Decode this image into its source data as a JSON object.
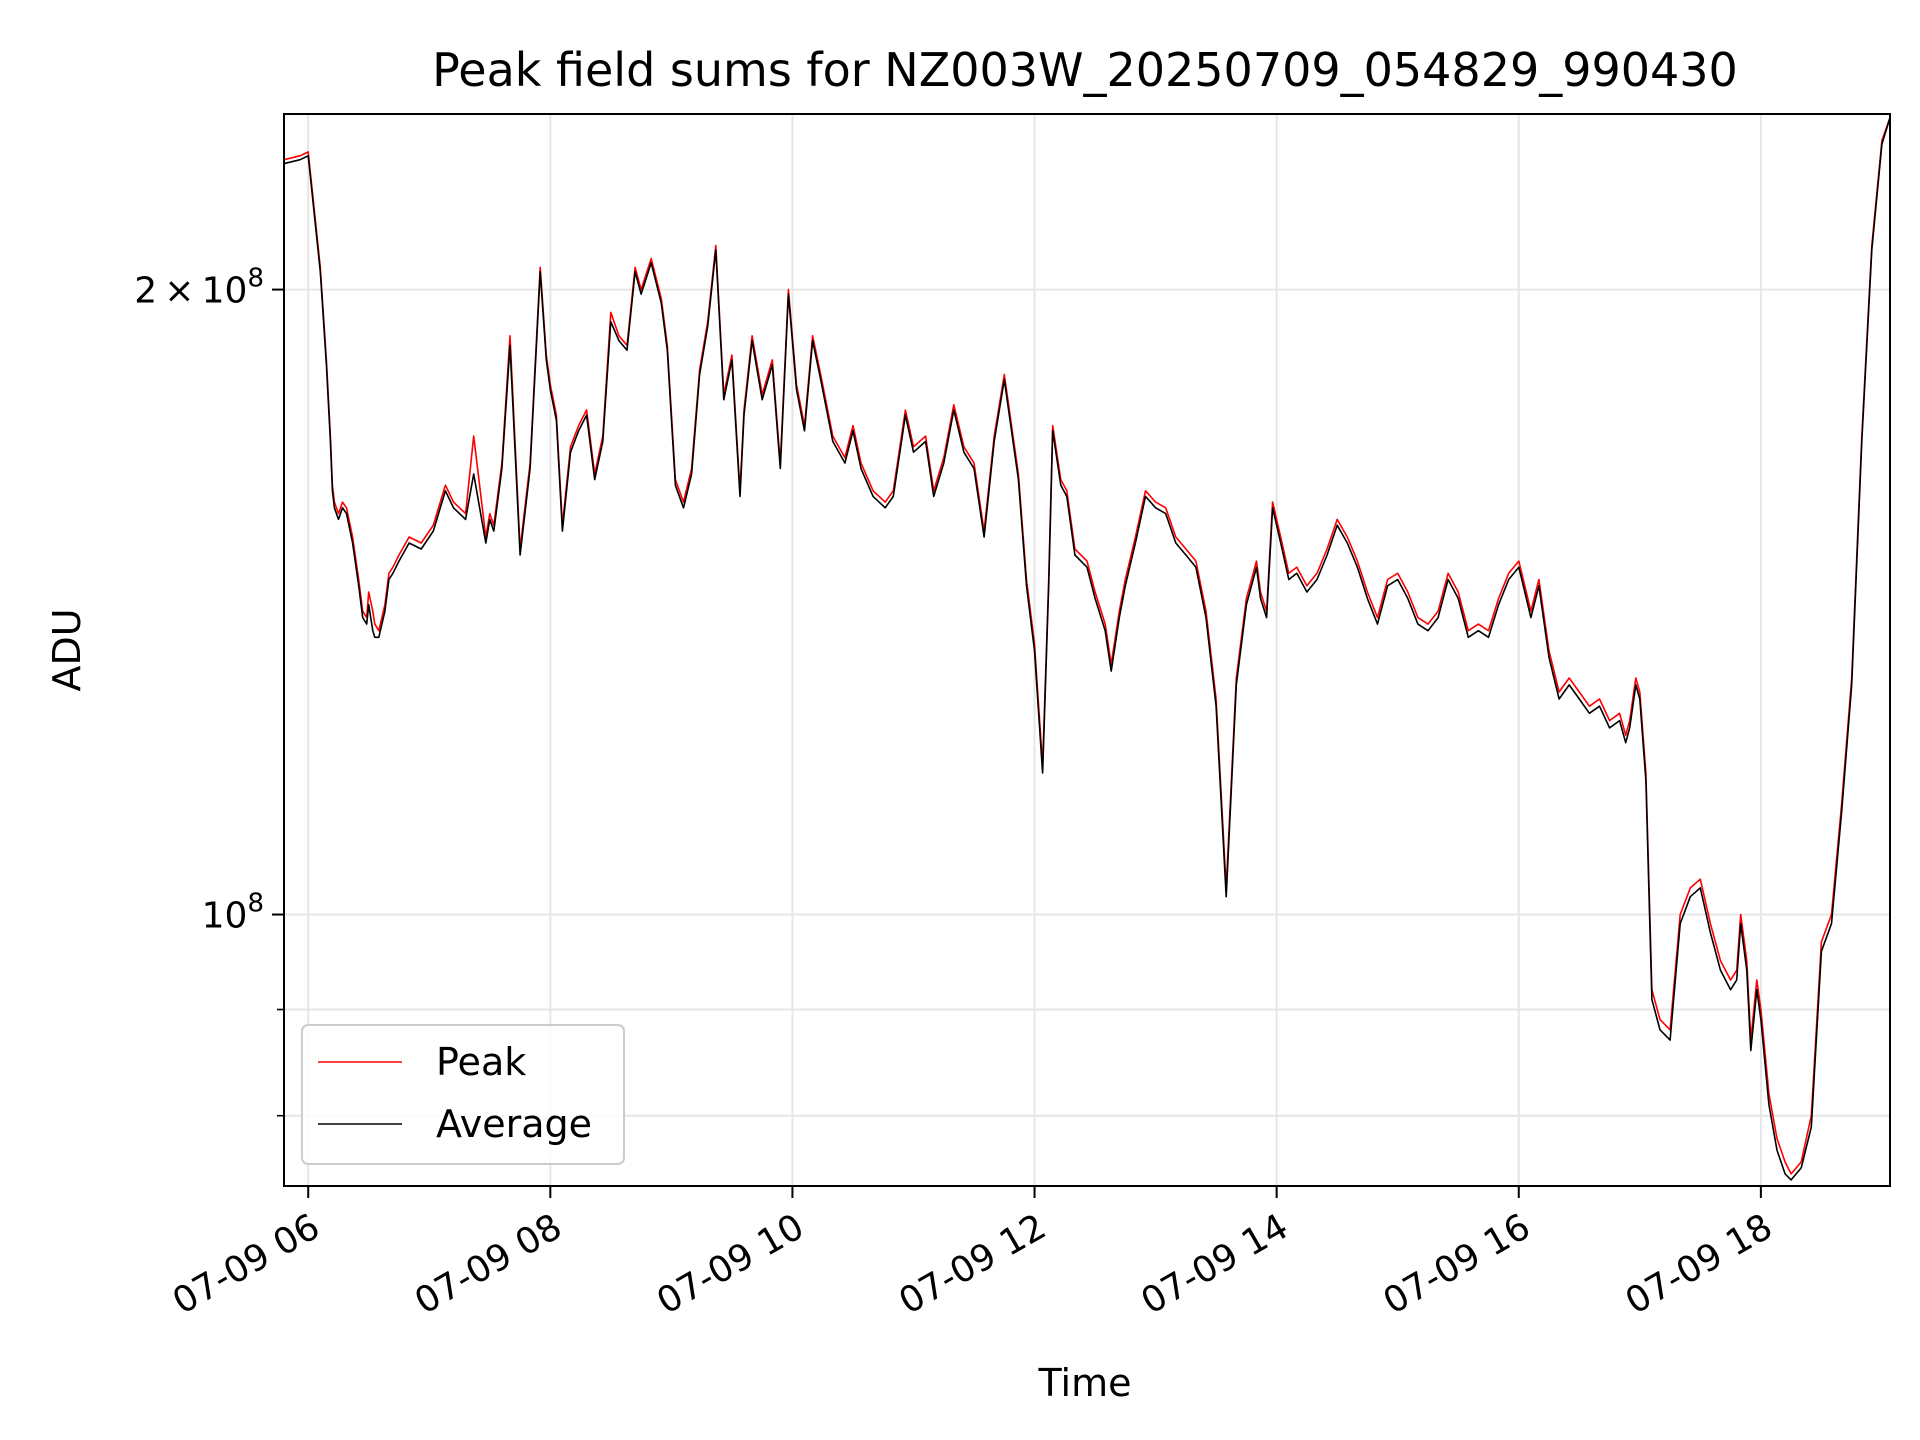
{
  "chart_data": {
    "type": "line",
    "title": "Peak field sums for NZ003W_20250709_054829_990430",
    "xlabel": "Time",
    "ylabel": "ADU",
    "yscale": "log",
    "ylim": [
      74000000,
      243000000
    ],
    "xlim": [
      "2025-07-09 05:48",
      "2025-07-09 19:04"
    ],
    "x_ticks": [
      {
        "value": "2025-07-09 06:00",
        "label": "07-09 06"
      },
      {
        "value": "2025-07-09 08:00",
        "label": "07-09 08"
      },
      {
        "value": "2025-07-09 10:00",
        "label": "07-09 10"
      },
      {
        "value": "2025-07-09 12:00",
        "label": "07-09 12"
      },
      {
        "value": "2025-07-09 14:00",
        "label": "07-09 14"
      },
      {
        "value": "2025-07-09 16:00",
        "label": "07-09 16"
      },
      {
        "value": "2025-07-09 18:00",
        "label": "07-09 18"
      }
    ],
    "y_ticks": [
      {
        "value": 200000000,
        "mantissa": "2",
        "times": "×",
        "base": "10",
        "exp": "8"
      },
      {
        "value": 100000000,
        "mantissa": "",
        "times": "",
        "base": "10",
        "exp": "8"
      }
    ],
    "y_minor_ticks": [
      80000000,
      90000000
    ],
    "grid": true,
    "legend_position": "lower-left",
    "x": [
      "05:48",
      "05:56",
      "06:00",
      "06:06",
      "06:09",
      "06:11",
      "06:12",
      "06:13",
      "06:15",
      "06:17",
      "06:19",
      "06:22",
      "06:25",
      "06:27",
      "06:29",
      "06:30",
      "06:32",
      "06:33",
      "06:35",
      "06:38",
      "06:40",
      "06:42",
      "06:45",
      "06:50",
      "06:56",
      "07:02",
      "07:08",
      "07:12",
      "07:18",
      "07:22",
      "07:28",
      "07:30",
      "07:32",
      "07:36",
      "07:40",
      "07:45",
      "07:50",
      "07:55",
      "07:58",
      "08:00",
      "08:03",
      "08:06",
      "08:10",
      "08:14",
      "08:18",
      "08:22",
      "08:26",
      "08:30",
      "08:34",
      "08:38",
      "08:42",
      "08:45",
      "08:50",
      "08:55",
      "08:58",
      "09:02",
      "09:06",
      "09:10",
      "09:14",
      "09:18",
      "09:22",
      "09:26",
      "09:30",
      "09:34",
      "09:36",
      "09:40",
      "09:45",
      "09:50",
      "09:54",
      "09:58",
      "10:02",
      "10:06",
      "10:10",
      "10:14",
      "10:20",
      "10:26",
      "10:30",
      "10:34",
      "10:40",
      "10:46",
      "10:50",
      "10:56",
      "11:00",
      "11:06",
      "11:10",
      "11:15",
      "11:20",
      "11:25",
      "11:30",
      "11:35",
      "11:40",
      "11:45",
      "11:52",
      "11:56",
      "12:00",
      "12:04",
      "12:07",
      "12:09",
      "12:13",
      "12:16",
      "12:20",
      "12:26",
      "12:30",
      "12:35",
      "12:38",
      "12:42",
      "12:45",
      "12:50",
      "12:55",
      "13:00",
      "13:05",
      "13:10",
      "13:15",
      "13:20",
      "13:25",
      "13:30",
      "13:35",
      "13:40",
      "13:45",
      "13:50",
      "13:52",
      "13:55",
      "13:58",
      "14:02",
      "14:06",
      "14:10",
      "14:15",
      "14:20",
      "14:25",
      "14:30",
      "14:35",
      "14:40",
      "14:45",
      "14:50",
      "14:55",
      "15:00",
      "15:05",
      "15:10",
      "15:15",
      "15:20",
      "15:25",
      "15:30",
      "15:35",
      "15:40",
      "15:45",
      "15:50",
      "15:55",
      "16:00",
      "16:03",
      "16:06",
      "16:10",
      "16:15",
      "16:20",
      "16:25",
      "16:30",
      "16:35",
      "16:40",
      "16:45",
      "16:50",
      "16:53",
      "16:55",
      "16:58",
      "17:00",
      "17:03",
      "17:06",
      "17:10",
      "17:15",
      "17:20",
      "17:25",
      "17:30",
      "17:35",
      "17:40",
      "17:45",
      "17:48",
      "17:50",
      "17:53",
      "17:55",
      "17:58",
      "18:00",
      "18:04",
      "18:08",
      "18:12",
      "18:15",
      "18:20",
      "18:25",
      "18:30",
      "18:35",
      "18:40",
      "18:45",
      "18:50",
      "18:55",
      "19:00",
      "19:04"
    ],
    "series": [
      {
        "name": "Peak",
        "color": "#ff0000",
        "values": [
          231000000,
          232000000,
          233000000,
          205000000,
          185000000,
          170000000,
          161000000,
          158000000,
          156000000,
          158000000,
          157000000,
          152000000,
          145000000,
          140000000,
          139000000,
          143000000,
          140000000,
          138000000,
          137000000,
          141000000,
          146000000,
          147000000,
          149000000,
          152000000,
          151000000,
          154000000,
          161000000,
          158000000,
          156000000,
          170000000,
          152000000,
          156000000,
          154000000,
          165000000,
          190000000,
          150000000,
          165000000,
          205000000,
          186000000,
          180000000,
          174000000,
          154000000,
          168000000,
          172000000,
          175000000,
          163000000,
          170000000,
          195000000,
          190000000,
          188000000,
          205000000,
          200000000,
          207000000,
          198000000,
          188000000,
          162000000,
          158000000,
          164000000,
          183000000,
          193000000,
          210000000,
          178000000,
          186000000,
          160000000,
          175000000,
          190000000,
          178000000,
          185000000,
          165000000,
          200000000,
          180000000,
          172000000,
          190000000,
          182000000,
          170000000,
          166000000,
          172000000,
          165000000,
          160000000,
          158000000,
          160000000,
          175000000,
          168000000,
          170000000,
          160000000,
          166000000,
          176000000,
          168000000,
          165000000,
          153000000,
          170000000,
          182000000,
          163000000,
          145000000,
          135000000,
          118000000,
          145000000,
          172000000,
          162000000,
          160000000,
          150000000,
          148000000,
          143000000,
          138000000,
          132000000,
          140000000,
          145000000,
          152000000,
          160000000,
          158000000,
          157000000,
          152000000,
          150000000,
          148000000,
          140000000,
          127000000,
          103000000,
          130000000,
          142000000,
          148000000,
          143000000,
          140000000,
          158000000,
          152000000,
          146000000,
          147000000,
          144000000,
          146000000,
          150000000,
          155000000,
          152000000,
          148000000,
          143000000,
          139000000,
          145000000,
          146000000,
          143000000,
          139000000,
          138000000,
          140000000,
          146000000,
          143000000,
          137000000,
          138000000,
          137000000,
          142000000,
          146000000,
          148000000,
          144000000,
          140000000,
          145000000,
          134000000,
          128000000,
          130000000,
          128000000,
          126000000,
          127000000,
          124000000,
          125000000,
          122000000,
          124000000,
          130000000,
          128000000,
          117000000,
          92000000,
          89000000,
          88000000,
          100000000,
          103000000,
          104000000,
          99000000,
          95000000,
          93000000,
          94000000,
          100000000,
          95000000,
          87000000,
          93000000,
          90000000,
          82000000,
          78000000,
          76000000,
          75000000,
          76000000,
          80000000,
          97000000,
          100000000,
          113000000,
          130000000,
          170000000,
          210000000,
          236000000,
          242000000
        ]
      },
      {
        "name": "Average",
        "color": "#000000",
        "values": [
          230000000,
          231000000,
          232000000,
          204000000,
          184000000,
          169000000,
          160000000,
          157000000,
          155000000,
          157000000,
          156000000,
          151000000,
          144000000,
          139000000,
          138000000,
          141000000,
          137000000,
          136000000,
          136000000,
          140000000,
          145000000,
          146000000,
          148000000,
          151000000,
          150000000,
          153000000,
          160000000,
          157000000,
          155000000,
          163000000,
          151000000,
          155000000,
          153000000,
          164000000,
          188000000,
          149000000,
          164000000,
          204000000,
          185000000,
          179000000,
          173000000,
          153000000,
          167000000,
          171000000,
          174000000,
          162000000,
          169000000,
          193000000,
          189000000,
          187000000,
          204000000,
          199000000,
          206000000,
          197000000,
          187000000,
          161000000,
          157000000,
          163000000,
          182000000,
          192000000,
          209000000,
          177000000,
          185000000,
          159000000,
          174000000,
          189000000,
          177000000,
          184000000,
          164000000,
          199000000,
          179000000,
          171000000,
          189000000,
          181000000,
          169000000,
          165000000,
          171000000,
          164000000,
          159000000,
          157000000,
          159000000,
          174000000,
          167000000,
          169000000,
          159000000,
          165000000,
          175000000,
          167000000,
          164000000,
          152000000,
          169000000,
          181000000,
          162000000,
          144000000,
          134000000,
          117000000,
          144000000,
          171000000,
          161000000,
          159000000,
          149000000,
          147000000,
          142000000,
          137000000,
          131000000,
          139000000,
          144000000,
          151000000,
          159000000,
          157000000,
          156000000,
          151000000,
          149000000,
          147000000,
          139000000,
          126000000,
          102000000,
          129000000,
          141000000,
          147000000,
          142000000,
          139000000,
          157000000,
          151000000,
          145000000,
          146000000,
          143000000,
          145000000,
          149000000,
          154000000,
          151000000,
          147000000,
          142000000,
          138000000,
          144000000,
          145000000,
          142000000,
          138000000,
          137000000,
          139000000,
          145000000,
          142000000,
          136000000,
          137000000,
          136000000,
          141000000,
          145000000,
          147000000,
          143000000,
          139000000,
          144000000,
          133000000,
          127000000,
          129000000,
          127000000,
          125000000,
          126000000,
          123000000,
          124000000,
          121000000,
          123000000,
          129000000,
          127000000,
          116000000,
          91000000,
          88000000,
          87000000,
          99000000,
          102000000,
          103000000,
          98000000,
          94000000,
          92000000,
          93000000,
          99000000,
          94000000,
          86000000,
          92000000,
          89000000,
          81000000,
          77000000,
          75000000,
          74500000,
          75500000,
          79000000,
          96000000,
          99000000,
          112000000,
          129000000,
          169000000,
          209000000,
          235000000,
          242000000
        ]
      }
    ]
  }
}
